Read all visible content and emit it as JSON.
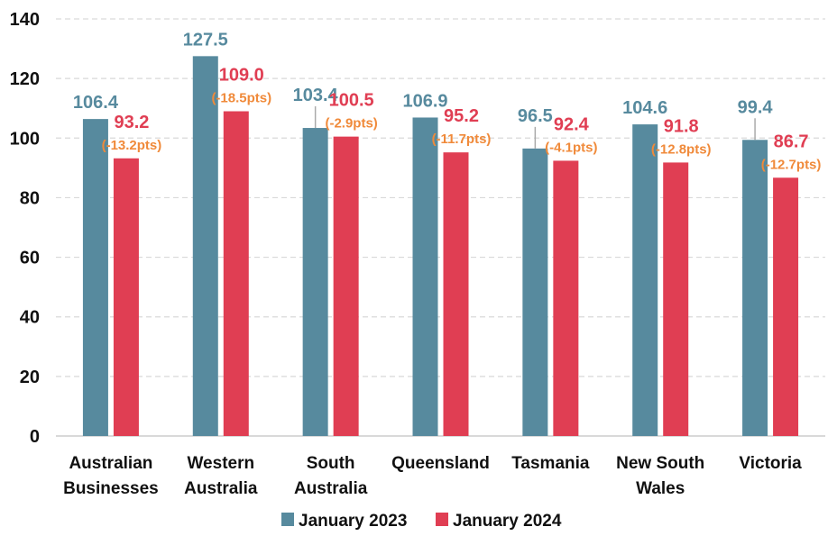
{
  "chart_data": {
    "type": "bar",
    "title": "",
    "xlabel": "",
    "ylabel": "",
    "ylim": [
      0,
      140
    ],
    "yticks": [
      "0",
      "20",
      "40",
      "60",
      "80",
      "100",
      "120",
      "140"
    ],
    "grid": true,
    "legend_position": "bottom",
    "categories": [
      [
        "Australian",
        "Businesses"
      ],
      [
        "Western",
        "Australia"
      ],
      [
        "South",
        "Australia"
      ],
      [
        "Queensland"
      ],
      [
        "Tasmania"
      ],
      [
        "New South",
        "Wales"
      ],
      [
        "Victoria"
      ]
    ],
    "series": [
      {
        "name": "January 2023",
        "color": "#578a9e",
        "values": [
          106.4,
          127.5,
          103.4,
          106.9,
          96.5,
          104.6,
          99.4
        ],
        "labels": [
          "106.4",
          "127.5",
          "103.4",
          "106.9",
          "96.5",
          "104.6",
          "99.4"
        ]
      },
      {
        "name": "January 2024",
        "color": "#e03e53",
        "values": [
          93.2,
          109.0,
          100.5,
          95.2,
          92.4,
          91.8,
          86.7
        ],
        "labels": [
          "93.2",
          "109.0",
          "100.5",
          "95.2",
          "92.4",
          "91.8",
          "86.7"
        ]
      }
    ],
    "annotations": [
      "(-13.2pts)",
      "(-18.5pts)",
      "(-2.9pts)",
      "(-11.7pts)",
      "(-4.1pts)",
      "(-12.8pts)",
      "(-12.7pts)"
    ],
    "annotation_color": "#f08a3a",
    "label_color_2023": "#578a9e",
    "label_color_2024": "#e03e53"
  }
}
